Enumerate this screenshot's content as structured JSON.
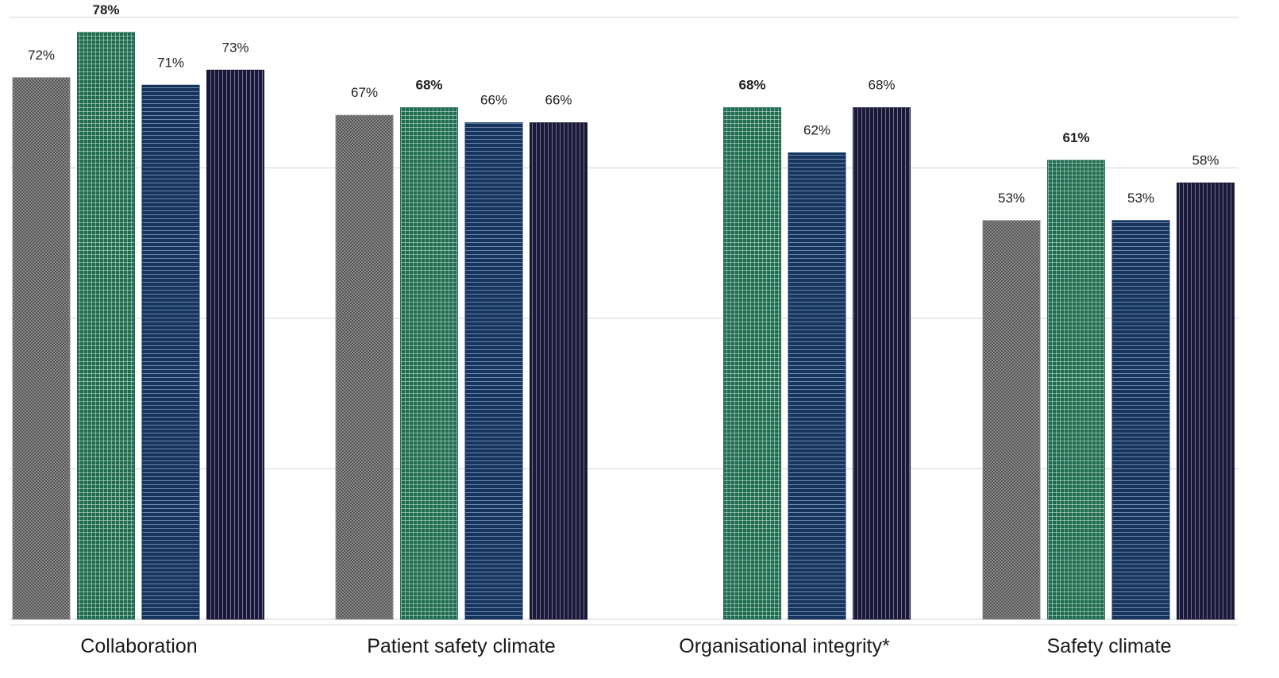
{
  "chart_data": {
    "type": "bar",
    "categories": [
      "Collaboration",
      "Patient safety climate",
      "Organisational integrity*",
      "Safety climate"
    ],
    "series": [
      {
        "pattern": "crosshatch",
        "color": "#8c8c8c",
        "values": [
          72,
          67,
          null,
          53
        ],
        "labels": [
          "72%",
          "67%",
          "",
          "53%"
        ],
        "bold": false
      },
      {
        "pattern": "grid",
        "color": "#1f6b50",
        "values": [
          78,
          68,
          68,
          61
        ],
        "labels": [
          "78%",
          "68%",
          "68%",
          "61%"
        ],
        "bold": true
      },
      {
        "pattern": "horizontal-lines",
        "color": "#15345e",
        "values": [
          71,
          66,
          62,
          53
        ],
        "labels": [
          "71%",
          "66%",
          "62%",
          "53%"
        ],
        "bold": false
      },
      {
        "pattern": "vertical-lines",
        "color": "#1a1838",
        "values": [
          73,
          66,
          68,
          58
        ],
        "labels": [
          "73%",
          "66%",
          "68%",
          "58%"
        ],
        "bold": false
      }
    ],
    "ylim": [
      0,
      80
    ],
    "gridlines": [
      0,
      20,
      40,
      60,
      80
    ],
    "grid": true,
    "legend": "none",
    "title": "",
    "xlabel": "",
    "ylabel": ""
  }
}
